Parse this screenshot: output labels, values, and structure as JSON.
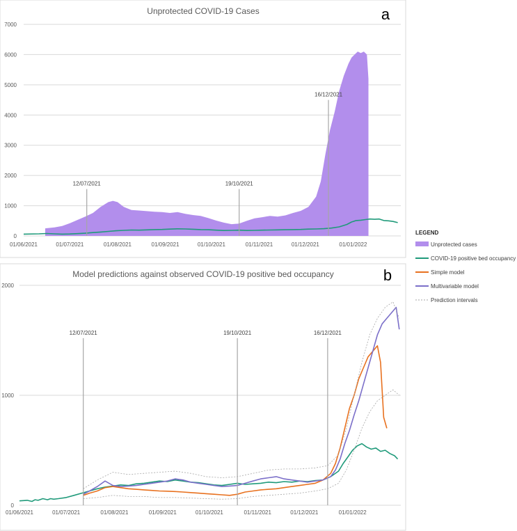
{
  "colors": {
    "cases": "#b28eec",
    "bed": "#1f9a7a",
    "simple": "#e8711f",
    "multi": "#7b6fc9",
    "grid": "#d9d9d9",
    "annotation": "#a6a6a6"
  },
  "legend": {
    "title": "LEGEND",
    "items": [
      {
        "label": "Unprotected cases",
        "kind": "area",
        "color": "#b28eec"
      },
      {
        "label": "COVID-19 positive bed occupancy",
        "kind": "line",
        "color": "#1f9a7a"
      },
      {
        "label": "Simple model",
        "kind": "line",
        "color": "#e8711f"
      },
      {
        "label": "Multivariable model",
        "kind": "line",
        "color": "#7b6fc9"
      },
      {
        "label": "Prediction intervals",
        "kind": "dotted",
        "color": "#a6a6a6"
      }
    ]
  },
  "chart_data": [
    {
      "panel": "a",
      "type": "area",
      "title": "Unprotected COVID-19 Cases",
      "xlabel": "",
      "ylabel": "",
      "ylim": [
        0,
        7000
      ],
      "yticks": [
        0,
        1000,
        2000,
        3000,
        4000,
        5000,
        6000,
        7000
      ],
      "xtick_labels": [
        "01/06/2021",
        "01/07/2021",
        "01/08/2021",
        "01/09/2021",
        "01/10/2021",
        "01/11/2021",
        "01/12/2021",
        "01/01/2022"
      ],
      "xtick_days": [
        0,
        30,
        61,
        92,
        122,
        153,
        183,
        214
      ],
      "x_range_days": [
        0,
        245
      ],
      "annotations": [
        {
          "label": "12/07/2021",
          "day": 41,
          "top": 1550
        },
        {
          "label": "19/10/2021",
          "day": 140,
          "top": 1550
        },
        {
          "label": "16/12/2021",
          "day": 198,
          "top": 4500
        }
      ],
      "series": [
        {
          "name": "Unprotected cases",
          "kind": "area",
          "x": [
            14,
            20,
            25,
            30,
            35,
            40,
            45,
            50,
            55,
            58,
            61,
            65,
            70,
            75,
            80,
            85,
            90,
            95,
            100,
            105,
            110,
            115,
            120,
            125,
            130,
            135,
            140,
            145,
            150,
            155,
            160,
            165,
            170,
            175,
            180,
            185,
            190,
            193,
            196,
            199,
            202,
            205,
            208,
            211,
            213,
            215,
            217,
            219,
            221,
            223,
            224
          ],
          "y": [
            250,
            280,
            330,
            420,
            530,
            640,
            760,
            960,
            1120,
            1160,
            1120,
            960,
            860,
            840,
            820,
            800,
            790,
            760,
            790,
            730,
            690,
            660,
            590,
            510,
            440,
            390,
            410,
            500,
            580,
            620,
            660,
            640,
            680,
            760,
            830,
            960,
            1300,
            1800,
            2700,
            3500,
            4100,
            4800,
            5300,
            5700,
            5900,
            6000,
            6100,
            6050,
            6100,
            6000,
            5200
          ]
        },
        {
          "name": "COVID-19 positive bed occupancy",
          "kind": "line",
          "x": [
            0,
            10,
            15,
            20,
            25,
            30,
            35,
            40,
            45,
            50,
            55,
            60,
            65,
            70,
            75,
            80,
            85,
            90,
            95,
            100,
            105,
            110,
            115,
            120,
            125,
            130,
            135,
            140,
            145,
            150,
            155,
            160,
            165,
            170,
            175,
            180,
            185,
            190,
            195,
            200,
            205,
            210,
            213,
            216,
            219,
            222,
            225,
            228,
            231,
            234,
            237,
            240,
            243
          ],
          "y": [
            60,
            70,
            80,
            70,
            60,
            65,
            75,
            90,
            110,
            130,
            150,
            170,
            185,
            195,
            190,
            200,
            210,
            215,
            225,
            235,
            230,
            220,
            210,
            205,
            190,
            180,
            185,
            190,
            180,
            185,
            190,
            195,
            200,
            205,
            210,
            215,
            225,
            230,
            240,
            260,
            300,
            380,
            460,
            510,
            520,
            540,
            560,
            550,
            560,
            510,
            500,
            480,
            440
          ]
        }
      ]
    },
    {
      "panel": "b",
      "type": "line",
      "title": "Model predictions against observed COVID-19 positive bed occupancy",
      "xlabel": "",
      "ylabel": "",
      "ylim": [
        0,
        2000
      ],
      "yticks": [
        0,
        1000,
        2000
      ],
      "ytick_labels": [
        "0",
        "1000",
        "2000"
      ],
      "xtick_labels": [
        "01/06/2021",
        "01/07/2021",
        "01/08/2021",
        "01/09/2021",
        "01/10/2021",
        "01/11/2021",
        "01/12/2021",
        "01/01/2022"
      ],
      "xtick_days": [
        0,
        30,
        61,
        92,
        122,
        153,
        183,
        214
      ],
      "x_range_days": [
        0,
        245
      ],
      "annotations": [
        {
          "label": "12/07/2021",
          "day": 41,
          "top": 1520
        },
        {
          "label": "19/10/2021",
          "day": 140,
          "top": 1520
        },
        {
          "label": "16/12/2021",
          "day": 198,
          "top": 1520
        }
      ],
      "series": [
        {
          "name": "COVID-19 positive bed occupancy",
          "x": [
            0,
            5,
            8,
            10,
            12,
            15,
            18,
            20,
            22,
            25,
            30,
            35,
            40,
            45,
            50,
            55,
            60,
            65,
            70,
            75,
            80,
            85,
            90,
            95,
            100,
            105,
            110,
            115,
            120,
            125,
            130,
            135,
            140,
            145,
            150,
            155,
            160,
            165,
            170,
            175,
            180,
            185,
            190,
            195,
            200,
            205,
            208,
            211,
            214,
            217,
            220,
            223,
            226,
            229,
            232,
            235,
            238,
            241,
            243
          ],
          "y": [
            40,
            45,
            35,
            50,
            45,
            60,
            50,
            60,
            55,
            60,
            70,
            90,
            110,
            130,
            150,
            165,
            175,
            185,
            180,
            195,
            200,
            210,
            220,
            215,
            230,
            220,
            210,
            205,
            195,
            185,
            180,
            190,
            200,
            190,
            195,
            200,
            210,
            205,
            215,
            210,
            220,
            215,
            225,
            230,
            260,
            310,
            380,
            440,
            500,
            540,
            560,
            530,
            510,
            520,
            490,
            500,
            470,
            450,
            420
          ]
        },
        {
          "name": "Simple model",
          "x": [
            41,
            45,
            50,
            55,
            60,
            65,
            70,
            75,
            80,
            85,
            90,
            95,
            100,
            105,
            110,
            115,
            120,
            125,
            130,
            135,
            140,
            145,
            150,
            155,
            160,
            165,
            170,
            175,
            180,
            185,
            190,
            195,
            200,
            203,
            206,
            209,
            212,
            215,
            218,
            221,
            224,
            227,
            230,
            232,
            234,
            236
          ],
          "y": [
            90,
            110,
            130,
            160,
            170,
            160,
            150,
            145,
            140,
            135,
            130,
            128,
            125,
            120,
            115,
            110,
            105,
            100,
            95,
            90,
            100,
            120,
            130,
            140,
            145,
            150,
            160,
            170,
            180,
            190,
            200,
            230,
            290,
            380,
            520,
            700,
            880,
            1000,
            1150,
            1250,
            1350,
            1400,
            1450,
            1300,
            800,
            700
          ]
        },
        {
          "name": "Multivariable model",
          "x": [
            41,
            45,
            50,
            55,
            60,
            65,
            70,
            75,
            80,
            85,
            90,
            95,
            100,
            105,
            110,
            115,
            120,
            125,
            130,
            135,
            140,
            145,
            150,
            155,
            160,
            165,
            170,
            175,
            180,
            185,
            190,
            195,
            200,
            203,
            206,
            209,
            212,
            215,
            218,
            221,
            224,
            227,
            230,
            233,
            236,
            239,
            242,
            244
          ],
          "y": [
            100,
            130,
            170,
            220,
            180,
            170,
            175,
            180,
            190,
            200,
            210,
            220,
            240,
            230,
            210,
            200,
            190,
            180,
            170,
            175,
            180,
            200,
            220,
            240,
            250,
            260,
            240,
            230,
            220,
            210,
            220,
            230,
            260,
            320,
            420,
            560,
            680,
            820,
            950,
            1100,
            1250,
            1400,
            1550,
            1650,
            1700,
            1750,
            1800,
            1600
          ]
        },
        {
          "name": "Prediction intervals",
          "x": [
            41,
            50,
            60,
            70,
            80,
            90,
            100,
            110,
            120,
            130,
            140,
            150,
            160,
            170,
            180,
            190,
            198,
            205,
            210,
            215,
            220,
            225,
            230,
            235,
            240,
            244
          ],
          "y": [
            150,
            230,
            300,
            280,
            290,
            300,
            310,
            290,
            260,
            250,
            260,
            290,
            320,
            330,
            330,
            340,
            360,
            460,
            700,
            1000,
            1300,
            1550,
            1700,
            1800,
            1850,
            1700
          ]
        },
        {
          "name": "Prediction intervals",
          "x": [
            41,
            50,
            60,
            70,
            80,
            90,
            100,
            110,
            120,
            130,
            140,
            150,
            160,
            170,
            180,
            190,
            198,
            205,
            210,
            215,
            220,
            225,
            230,
            235,
            240,
            244
          ],
          "y": [
            60,
            70,
            90,
            80,
            80,
            70,
            70,
            65,
            60,
            55,
            60,
            80,
            90,
            100,
            110,
            130,
            150,
            200,
            320,
            500,
            700,
            850,
            950,
            1000,
            1050,
            1000
          ]
        }
      ]
    }
  ]
}
